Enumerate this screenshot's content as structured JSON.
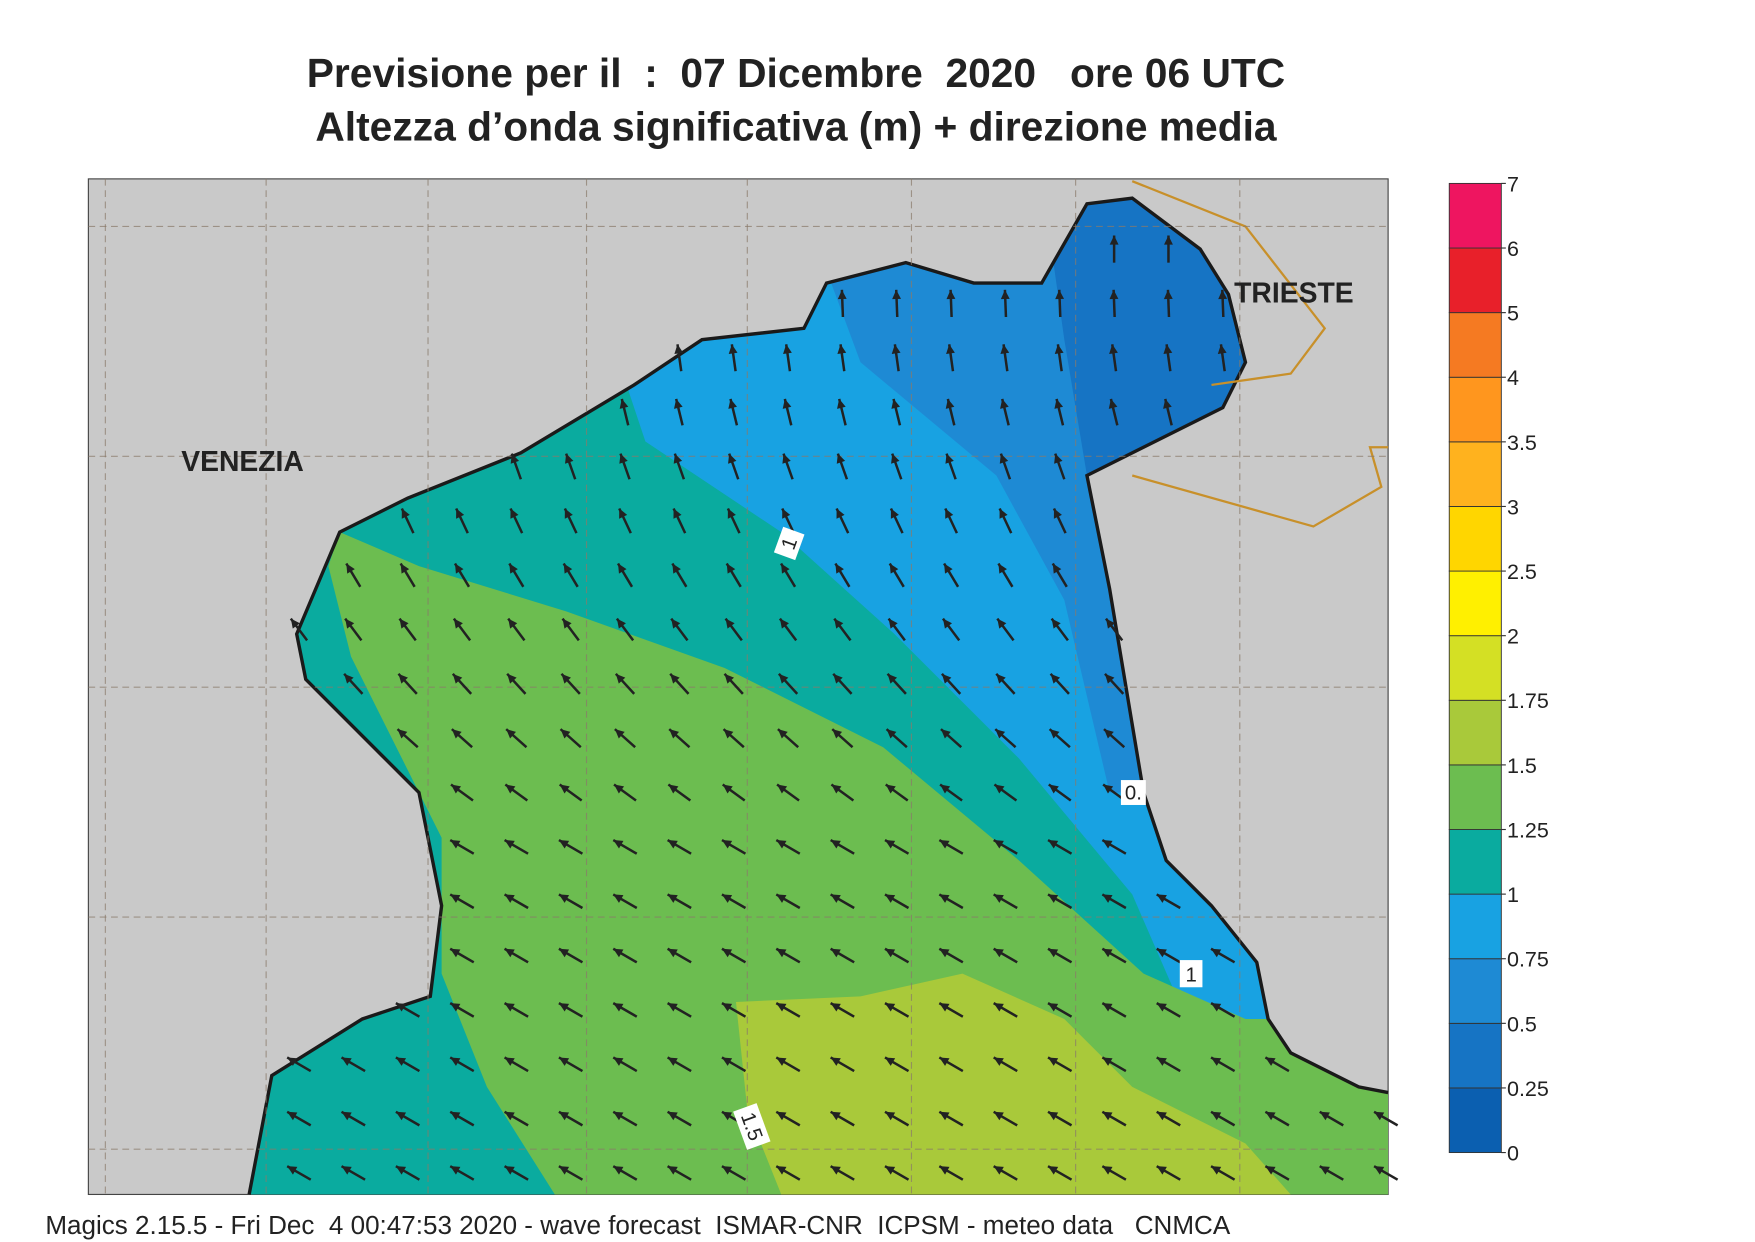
{
  "title": {
    "line1": "Previsione per il  :  07 Dicembre  2020   ore 06 UTC",
    "line2": "Altezza d’onda significativa (m) + direzione media"
  },
  "map": {
    "cities": [
      "VENEZIA",
      "TRIESTE"
    ],
    "contour_labels": [
      "1",
      "1",
      "1.5",
      "0."
    ]
  },
  "colorbar": {
    "ticks": [
      0,
      0.25,
      0.5,
      0.75,
      1,
      1.25,
      1.5,
      1.75,
      2,
      2.5,
      3,
      3.5,
      4,
      5,
      6,
      7
    ],
    "colors": [
      "#0b5fb0",
      "#1674c4",
      "#1e8ad4",
      "#18a2e2",
      "#0aab9f",
      "#6cbd50",
      "#a9c93a",
      "#d4e024",
      "#fff000",
      "#ffd600",
      "#ffb21e",
      "#ff961e",
      "#f57a22",
      "#e8202a",
      "#ee1560"
    ]
  },
  "footer": "Magics 2.15.5 - Fri Dec  4 00:47:53 2020 - wave forecast  ISMAR-CNR  ICPSM - meteo data   CNMCA"
}
